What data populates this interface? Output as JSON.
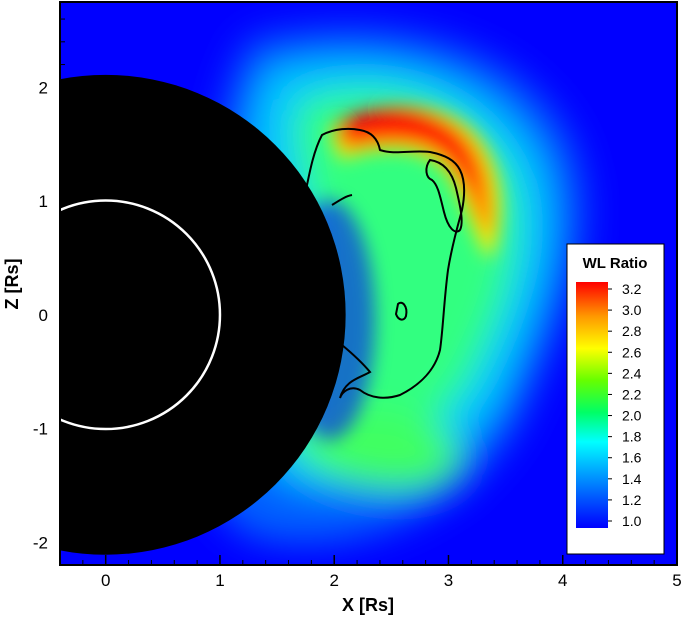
{
  "chart_data": {
    "type": "heatmap",
    "title": "",
    "xlabel": "X [Rs]",
    "ylabel": "Z [Rs]",
    "xlim": [
      -0.4,
      5
    ],
    "ylim": [
      -2.2,
      2.75
    ],
    "x_ticks": [
      "0",
      "1",
      "2",
      "3",
      "4",
      "5"
    ],
    "y_ticks": [
      "-2",
      "-1",
      "0",
      "1",
      "2"
    ],
    "occulter": {
      "center": [
        0,
        0
      ],
      "radius": 2.1
    },
    "solar_limb": {
      "center": [
        0,
        0
      ],
      "radius": 1.0
    },
    "colorbar": {
      "title": "WL Ratio",
      "placement": "right",
      "range": [
        1.0,
        3.2
      ],
      "ticks": [
        "3.2",
        "3.0",
        "2.8",
        "2.6",
        "2.4",
        "2.2",
        "2.0",
        "1.8",
        "1.6",
        "1.4",
        "1.2",
        "1.0"
      ],
      "colormap": [
        "#0000ff",
        "#00aaff",
        "#00ffff",
        "#00ff66",
        "#66ff00",
        "#ffff00",
        "#ff9900",
        "#ff0000"
      ]
    },
    "contour_color": "#000000",
    "limb_color": "#ffffff"
  }
}
